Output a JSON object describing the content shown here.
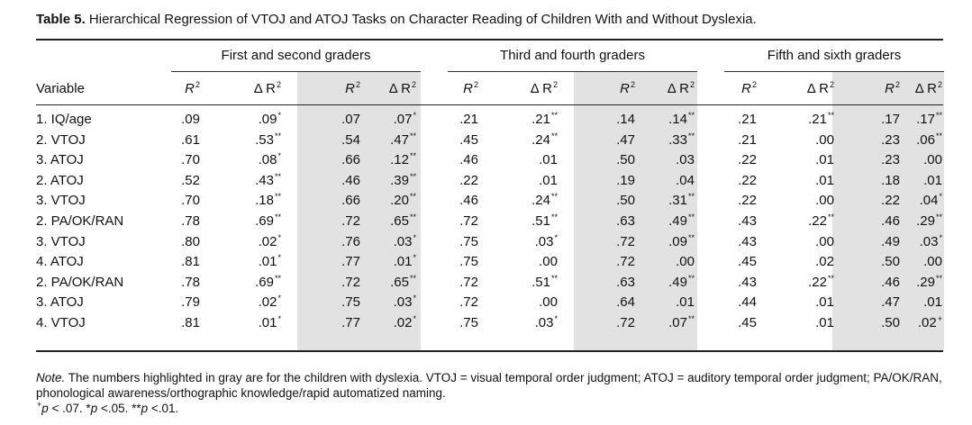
{
  "caption": {
    "label": "Table 5.",
    "text": "Hierarchical Regression of VTOJ and ATOJ Tasks on Character Reading of Children With and Without Dyslexia."
  },
  "groups": [
    "First and second graders",
    "Third and fourth graders",
    "Fifth and sixth graders"
  ],
  "headers": {
    "variable": "Variable",
    "r2": "R",
    "dr2": "Δ R",
    "sup": "2"
  },
  "rows": [
    {
      "var": "1. IQ/age",
      "cells": [
        [
          ".09",
          ""
        ],
        [
          ".09",
          "*"
        ],
        [
          ".07",
          ""
        ],
        [
          ".07",
          "*"
        ],
        [
          ".21",
          ""
        ],
        [
          ".21",
          "**"
        ],
        [
          ".14",
          ""
        ],
        [
          ".14",
          "**"
        ],
        [
          ".21",
          ""
        ],
        [
          ".21",
          "**"
        ],
        [
          ".17",
          ""
        ],
        [
          ".17",
          "**"
        ]
      ]
    },
    {
      "var": "2. VTOJ",
      "cells": [
        [
          ".61",
          ""
        ],
        [
          ".53",
          "**"
        ],
        [
          ".54",
          ""
        ],
        [
          ".47",
          "**"
        ],
        [
          ".45",
          ""
        ],
        [
          ".24",
          "**"
        ],
        [
          ".47",
          ""
        ],
        [
          ".33",
          "**"
        ],
        [
          ".21",
          ""
        ],
        [
          ".00",
          ""
        ],
        [
          ".23",
          ""
        ],
        [
          ".06",
          "**"
        ]
      ]
    },
    {
      "var": "3. ATOJ",
      "cells": [
        [
          ".70",
          ""
        ],
        [
          ".08",
          "*"
        ],
        [
          ".66",
          ""
        ],
        [
          ".12",
          "**"
        ],
        [
          ".46",
          ""
        ],
        [
          ".01",
          ""
        ],
        [
          ".50",
          ""
        ],
        [
          ".03",
          ""
        ],
        [
          ".22",
          ""
        ],
        [
          ".01",
          ""
        ],
        [
          ".23",
          ""
        ],
        [
          ".00",
          ""
        ]
      ]
    },
    {
      "var": "2. ATOJ",
      "cells": [
        [
          ".52",
          ""
        ],
        [
          ".43",
          "**"
        ],
        [
          ".46",
          ""
        ],
        [
          ".39",
          "**"
        ],
        [
          ".22",
          ""
        ],
        [
          ".01",
          ""
        ],
        [
          ".19",
          ""
        ],
        [
          ".04",
          ""
        ],
        [
          ".22",
          ""
        ],
        [
          ".01",
          ""
        ],
        [
          ".18",
          ""
        ],
        [
          ".01",
          ""
        ]
      ]
    },
    {
      "var": "3. VTOJ",
      "cells": [
        [
          ".70",
          ""
        ],
        [
          ".18",
          "**"
        ],
        [
          ".66",
          ""
        ],
        [
          ".20",
          "**"
        ],
        [
          ".46",
          ""
        ],
        [
          ".24",
          "**"
        ],
        [
          ".50",
          ""
        ],
        [
          ".31",
          "**"
        ],
        [
          ".22",
          ""
        ],
        [
          ".00",
          ""
        ],
        [
          ".22",
          ""
        ],
        [
          ".04",
          "*"
        ]
      ]
    },
    {
      "var": "2. PA/OK/RAN",
      "cells": [
        [
          ".78",
          ""
        ],
        [
          ".69",
          "**"
        ],
        [
          ".72",
          ""
        ],
        [
          ".65",
          "**"
        ],
        [
          ".72",
          ""
        ],
        [
          ".51",
          "**"
        ],
        [
          ".63",
          ""
        ],
        [
          ".49",
          "**"
        ],
        [
          ".43",
          ""
        ],
        [
          ".22",
          "**"
        ],
        [
          ".46",
          ""
        ],
        [
          ".29",
          "**"
        ]
      ]
    },
    {
      "var": "3. VTOJ",
      "cells": [
        [
          ".80",
          ""
        ],
        [
          ".02",
          "*"
        ],
        [
          ".76",
          ""
        ],
        [
          ".03",
          "*"
        ],
        [
          ".75",
          ""
        ],
        [
          ".03",
          "*"
        ],
        [
          ".72",
          ""
        ],
        [
          ".09",
          "**"
        ],
        [
          ".43",
          ""
        ],
        [
          ".00",
          ""
        ],
        [
          ".49",
          ""
        ],
        [
          ".03",
          "*"
        ]
      ]
    },
    {
      "var": "4. ATOJ",
      "cells": [
        [
          ".81",
          ""
        ],
        [
          ".01",
          "*"
        ],
        [
          ".77",
          ""
        ],
        [
          ".01",
          "*"
        ],
        [
          ".75",
          ""
        ],
        [
          ".00",
          ""
        ],
        [
          ".72",
          ""
        ],
        [
          ".00",
          ""
        ],
        [
          ".45",
          ""
        ],
        [
          ".02",
          ""
        ],
        [
          ".50",
          ""
        ],
        [
          ".00",
          ""
        ]
      ]
    },
    {
      "var": "2. PA/OK/RAN",
      "cells": [
        [
          ".78",
          ""
        ],
        [
          ".69",
          "**"
        ],
        [
          ".72",
          ""
        ],
        [
          ".65",
          "**"
        ],
        [
          ".72",
          ""
        ],
        [
          ".51",
          "**"
        ],
        [
          ".63",
          ""
        ],
        [
          ".49",
          "**"
        ],
        [
          ".43",
          ""
        ],
        [
          ".22",
          "**"
        ],
        [
          ".46",
          ""
        ],
        [
          ".29",
          "**"
        ]
      ]
    },
    {
      "var": "3. ATOJ",
      "cells": [
        [
          ".79",
          ""
        ],
        [
          ".02",
          "*"
        ],
        [
          ".75",
          ""
        ],
        [
          ".03",
          "*"
        ],
        [
          ".72",
          ""
        ],
        [
          ".00",
          ""
        ],
        [
          ".64",
          ""
        ],
        [
          ".01",
          ""
        ],
        [
          ".44",
          ""
        ],
        [
          ".01",
          ""
        ],
        [
          ".47",
          ""
        ],
        [
          ".01",
          ""
        ]
      ]
    },
    {
      "var": "4. VTOJ",
      "cells": [
        [
          ".81",
          ""
        ],
        [
          ".01",
          "*"
        ],
        [
          ".77",
          ""
        ],
        [
          ".02",
          "*"
        ],
        [
          ".75",
          ""
        ],
        [
          ".03",
          "*"
        ],
        [
          ".72",
          ""
        ],
        [
          ".07",
          "**"
        ],
        [
          ".45",
          ""
        ],
        [
          ".01",
          ""
        ],
        [
          ".50",
          ""
        ],
        [
          ".02",
          "+"
        ]
      ]
    }
  ],
  "note": {
    "label": "Note.",
    "text": "The numbers highlighted in gray are for the children with dyslexia. VTOJ = visual temporal order judgment; ATOJ = auditory temporal order judgment; PA/OK/RAN, phonological awareness/orthographic knowledge/rapid automatized naming.",
    "sig_plus_sup": "+",
    "sig_plus_p": "p",
    "sig_plus_rest": " < .07. *",
    "sig_one_p": "p",
    "sig_one_rest": " <.05. **",
    "sig_two_p": "p",
    "sig_two_rest": " <.01."
  },
  "colors": {
    "highlight": "#e2e2e2",
    "text": "#111111"
  }
}
